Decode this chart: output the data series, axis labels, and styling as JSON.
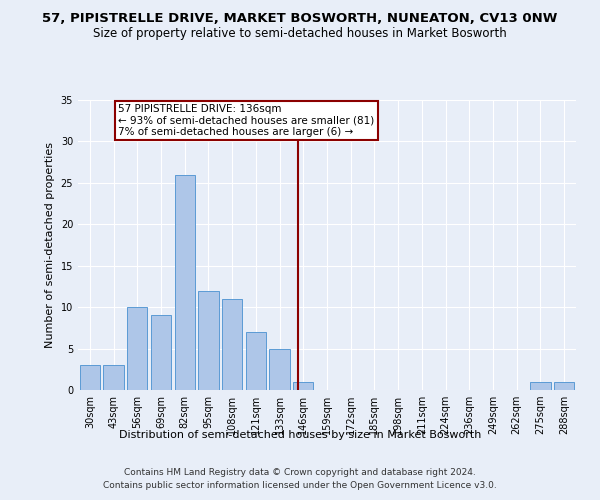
{
  "title": "57, PIPISTRELLE DRIVE, MARKET BOSWORTH, NUNEATON, CV13 0NW",
  "subtitle": "Size of property relative to semi-detached houses in Market Bosworth",
  "xlabel": "Distribution of semi-detached houses by size in Market Bosworth",
  "ylabel": "Number of semi-detached properties",
  "categories": [
    "30sqm",
    "43sqm",
    "56sqm",
    "69sqm",
    "82sqm",
    "95sqm",
    "108sqm",
    "121sqm",
    "133sqm",
    "146sqm",
    "159sqm",
    "172sqm",
    "185sqm",
    "198sqm",
    "211sqm",
    "224sqm",
    "236sqm",
    "249sqm",
    "262sqm",
    "275sqm",
    "288sqm"
  ],
  "values": [
    3,
    3,
    10,
    9,
    26,
    12,
    11,
    7,
    5,
    1,
    0,
    0,
    0,
    0,
    0,
    0,
    0,
    0,
    0,
    1,
    1
  ],
  "bar_color": "#aec6e8",
  "bar_edge_color": "#5b9bd5",
  "vline_x": 8.77,
  "vline_color": "#8b0000",
  "annotation_text": "57 PIPISTRELLE DRIVE: 136sqm\n← 93% of semi-detached houses are smaller (81)\n7% of semi-detached houses are larger (6) →",
  "annotation_box_color": "#8b0000",
  "annotation_fill": "#ffffff",
  "background_color": "#e8eef8",
  "grid_color": "#ffffff",
  "ylim": [
    0,
    35
  ],
  "yticks": [
    0,
    5,
    10,
    15,
    20,
    25,
    30,
    35
  ],
  "footer_line1": "Contains HM Land Registry data © Crown copyright and database right 2024.",
  "footer_line2": "Contains public sector information licensed under the Open Government Licence v3.0.",
  "title_fontsize": 9.5,
  "subtitle_fontsize": 8.5,
  "xlabel_fontsize": 8,
  "ylabel_fontsize": 8,
  "tick_fontsize": 7,
  "footer_fontsize": 6.5,
  "annotation_fontsize": 7.5
}
